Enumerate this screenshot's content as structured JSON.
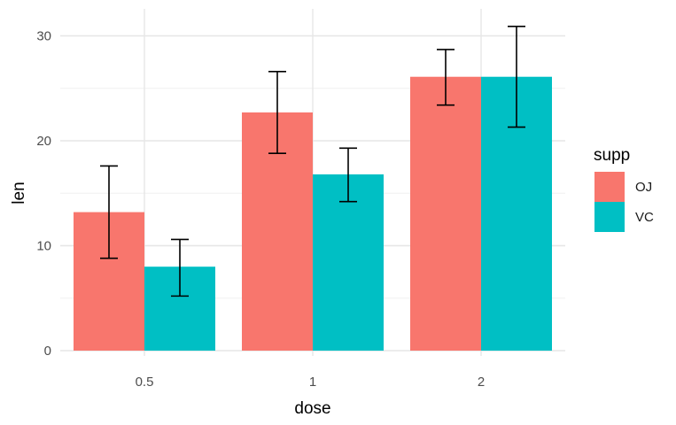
{
  "chart_data": {
    "type": "bar",
    "title": "",
    "xlabel": "dose",
    "ylabel": "len",
    "categories": [
      "0.5",
      "1",
      "2"
    ],
    "ylim": [
      0,
      32
    ],
    "yticks": [
      0,
      10,
      20,
      30
    ],
    "grid": true,
    "legend": {
      "title": "supp",
      "position": "right"
    },
    "series": [
      {
        "name": "OJ",
        "color": "#F8766D",
        "values": [
          13.2,
          22.7,
          26.1
        ],
        "error_low": [
          8.8,
          18.8,
          23.4
        ],
        "error_high": [
          17.6,
          26.6,
          28.7
        ]
      },
      {
        "name": "VC",
        "color": "#00BFC4",
        "values": [
          8.0,
          16.8,
          26.1
        ],
        "error_low": [
          5.2,
          14.2,
          21.3
        ],
        "error_high": [
          10.6,
          19.3,
          30.9
        ]
      }
    ]
  }
}
